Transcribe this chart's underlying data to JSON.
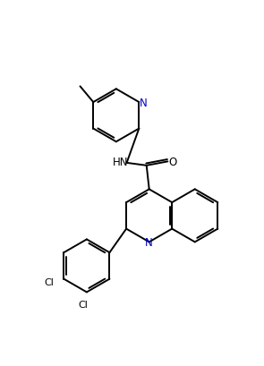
{
  "background_color": "#ffffff",
  "line_color": "#000000",
  "N_color": "#0000bb",
  "lw": 1.4,
  "figsize": [
    2.95,
    4.1
  ],
  "dpi": 100,
  "xlim": [
    0,
    10
  ],
  "ylim": [
    0,
    13.9
  ]
}
